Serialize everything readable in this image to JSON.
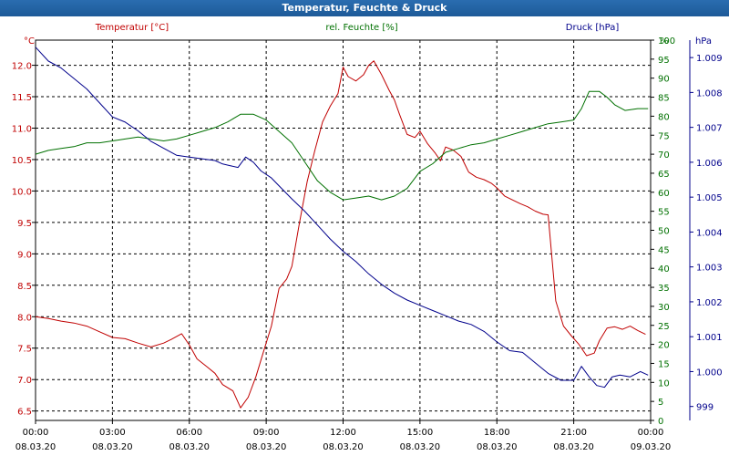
{
  "chart_data": {
    "type": "line",
    "title": "Temperatur, Feuchte & Druck",
    "x_ticks": [
      {
        "time": "00:00",
        "date": "08.03.20"
      },
      {
        "time": "03:00",
        "date": "08.03.20"
      },
      {
        "time": "06:00",
        "date": "08.03.20"
      },
      {
        "time": "09:00",
        "date": "08.03.20"
      },
      {
        "time": "12:00",
        "date": "08.03.20"
      },
      {
        "time": "15:00",
        "date": "08.03.20"
      },
      {
        "time": "18:00",
        "date": "08.03.20"
      },
      {
        "time": "21:00",
        "date": "08.03.20"
      },
      {
        "time": "00:00",
        "date": "09.03.20"
      }
    ],
    "xlim_hours": [
      0,
      24
    ],
    "axes": {
      "temperature": {
        "unit": "°C",
        "label": "Temperatur [°C]",
        "ylim": [
          6.35,
          12.4
        ],
        "ticks": [
          "6.5",
          "7.0",
          "7.5",
          "8.0",
          "8.5",
          "9.0",
          "9.5",
          "10.0",
          "10.5",
          "11.0",
          "11.5",
          "12.0"
        ],
        "color": "#c00000"
      },
      "humidity": {
        "unit": "%",
        "label": "rel. Feuchte [%]",
        "ylim": [
          0,
          100
        ],
        "ticks": [
          "0",
          "5",
          "10",
          "15",
          "20",
          "25",
          "30",
          "35",
          "40",
          "45",
          "50",
          "55",
          "60",
          "65",
          "70",
          "75",
          "80",
          "85",
          "90",
          "95",
          "100"
        ],
        "color": "#007000"
      },
      "pressure": {
        "unit": "hPa",
        "label": "Druck [hPa]",
        "ylim": [
          998.6,
          1009.5
        ],
        "ticks": [
          "999",
          "1.000",
          "1.001",
          "1.002",
          "1.003",
          "1.004",
          "1.005",
          "1.006",
          "1.007",
          "1.008",
          "1.009"
        ],
        "color": "#00008b"
      }
    },
    "series": [
      {
        "name": "Temperatur",
        "axis": "temperature",
        "x": [
          0,
          0.5,
          1,
          1.5,
          2,
          2.5,
          3,
          3.5,
          4,
          4.5,
          5,
          5.3,
          5.7,
          6,
          6.3,
          6.7,
          7,
          7.3,
          7.7,
          8,
          8.3,
          8.6,
          8.9,
          9.2,
          9.5,
          9.8,
          10,
          10.3,
          10.6,
          10.9,
          11.2,
          11.5,
          11.8,
          12,
          12.2,
          12.5,
          12.8,
          13,
          13.2,
          13.5,
          13.8,
          14,
          14.2,
          14.5,
          14.8,
          15,
          15.3,
          15.6,
          15.8,
          16,
          16.3,
          16.6,
          16.9,
          17.2,
          17.5,
          17.8,
          18,
          18.3,
          18.6,
          18.9,
          19.2,
          19.5,
          19.8,
          20,
          20.3,
          20.6,
          20.9,
          21.2,
          21.5,
          21.8,
          22,
          22.3,
          22.6,
          22.9,
          23.2,
          23.5,
          23.8
        ],
        "values": [
          8.0,
          7.97,
          7.93,
          7.9,
          7.85,
          7.76,
          7.67,
          7.65,
          7.58,
          7.52,
          7.58,
          7.64,
          7.73,
          7.55,
          7.33,
          7.2,
          7.1,
          6.92,
          6.82,
          6.55,
          6.72,
          7.05,
          7.45,
          7.85,
          8.45,
          8.6,
          8.8,
          9.5,
          10.15,
          10.65,
          11.1,
          11.35,
          11.55,
          11.97,
          11.82,
          11.75,
          11.85,
          12.0,
          12.07,
          11.85,
          11.6,
          11.45,
          11.22,
          10.9,
          10.85,
          10.95,
          10.75,
          10.6,
          10.48,
          10.7,
          10.65,
          10.55,
          10.3,
          10.22,
          10.18,
          10.12,
          10.05,
          9.92,
          9.86,
          9.8,
          9.75,
          9.68,
          9.63,
          9.62,
          8.25,
          7.85,
          7.7,
          7.56,
          7.38,
          7.42,
          7.62,
          7.82,
          7.84,
          7.8,
          7.85,
          7.78,
          7.72
        ]
      },
      {
        "name": "rel. Feuchte",
        "axis": "humidity",
        "x": [
          0,
          0.5,
          1,
          1.5,
          2,
          2.5,
          3,
          3.5,
          4,
          4.5,
          5,
          5.5,
          6,
          6.5,
          7,
          7.5,
          8,
          8.5,
          9,
          9.5,
          10,
          10.5,
          11,
          11.5,
          12,
          12.5,
          13,
          13.5,
          14,
          14.5,
          15,
          15.5,
          16,
          16.5,
          17,
          17.5,
          18,
          18.5,
          19,
          19.5,
          20,
          20.5,
          21,
          21.3,
          21.6,
          22,
          22.3,
          22.6,
          23,
          23.5,
          23.9
        ],
        "values": [
          70,
          71,
          71.5,
          72,
          73,
          73,
          73.5,
          74,
          74.5,
          74,
          73.5,
          74,
          75,
          76,
          77,
          78.5,
          80.5,
          80.5,
          79,
          76,
          73,
          68,
          63,
          60,
          58,
          58.5,
          59,
          58,
          59,
          61,
          65.5,
          67.5,
          70.5,
          71.5,
          72.5,
          73,
          74,
          75,
          76,
          77,
          78,
          78.5,
          79,
          82,
          86.5,
          86.5,
          85,
          83,
          81.5,
          82,
          82
        ]
      },
      {
        "name": "Druck",
        "axis": "pressure",
        "x": [
          0,
          0.5,
          1,
          1.5,
          2,
          2.5,
          3,
          3.5,
          4,
          4.5,
          5,
          5.5,
          6,
          6.5,
          7,
          7.3,
          7.6,
          7.9,
          8.2,
          8.5,
          8.8,
          9.2,
          9.6,
          10,
          10.5,
          11,
          11.5,
          12,
          12.5,
          13,
          13.5,
          14,
          14.5,
          15,
          15.5,
          16,
          16.5,
          17,
          17.5,
          18,
          18.5,
          19,
          19.5,
          20,
          20.5,
          21,
          21.3,
          21.6,
          21.9,
          22.2,
          22.5,
          22.8,
          23.2,
          23.6,
          23.9
        ],
        "values": [
          1009.3,
          1008.9,
          1008.7,
          1008.4,
          1008.1,
          1007.7,
          1007.3,
          1007.15,
          1006.9,
          1006.6,
          1006.4,
          1006.2,
          1006.15,
          1006.1,
          1006.05,
          1005.95,
          1005.9,
          1005.85,
          1006.15,
          1006.0,
          1005.75,
          1005.55,
          1005.25,
          1004.95,
          1004.6,
          1004.2,
          1003.8,
          1003.45,
          1003.15,
          1002.8,
          1002.5,
          1002.25,
          1002.05,
          1001.9,
          1001.75,
          1001.6,
          1001.45,
          1001.35,
          1001.15,
          1000.85,
          1000.6,
          1000.55,
          1000.25,
          999.95,
          999.75,
          999.75,
          1000.15,
          999.85,
          999.6,
          999.55,
          999.85,
          999.9,
          999.85,
          1000.0,
          999.9
        ]
      }
    ]
  }
}
